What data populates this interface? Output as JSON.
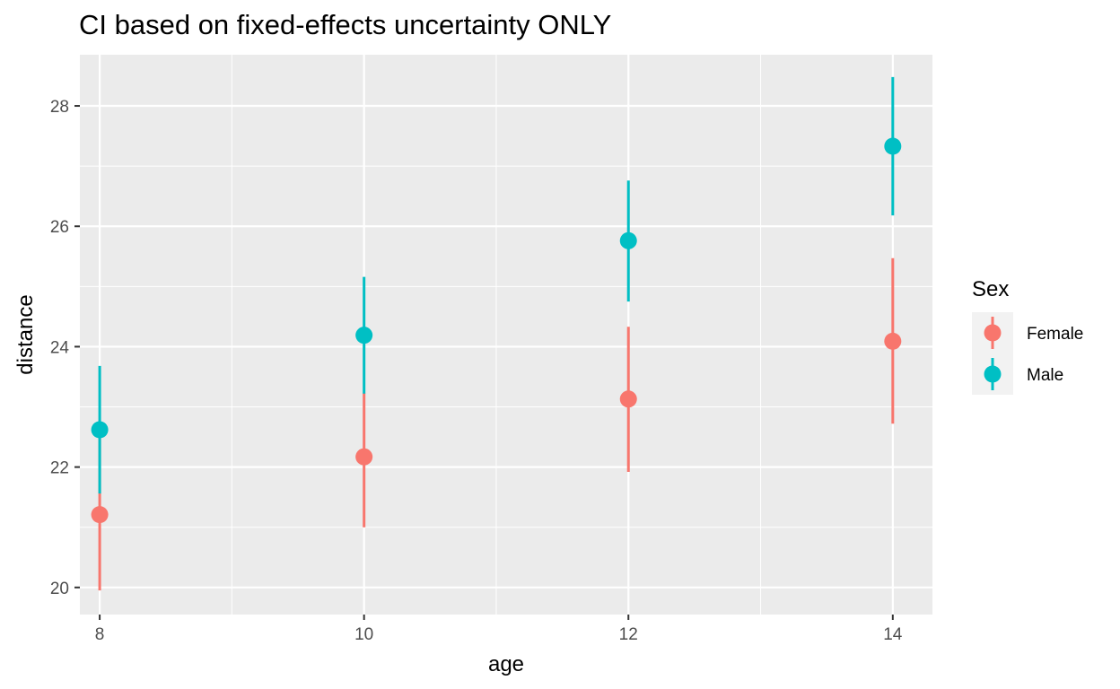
{
  "chart_data": {
    "type": "scatter",
    "title": "CI based on fixed-effects uncertainty ONLY",
    "xlabel": "age",
    "ylabel": "distance",
    "x": [
      8,
      10,
      12,
      14
    ],
    "xticks": [
      "8",
      "10",
      "12",
      "14"
    ],
    "yticks": [
      "20",
      "22",
      "24",
      "26",
      "28"
    ],
    "xlim": [
      7.85,
      14.3
    ],
    "ylim": [
      19.55,
      28.85
    ],
    "grid": true,
    "legend": {
      "title": "Sex",
      "placement": "right"
    },
    "series": [
      {
        "name": "Female",
        "color": "#F8766D",
        "values": [
          21.21,
          22.17,
          23.13,
          24.09
        ],
        "lower": [
          19.95,
          21.0,
          21.92,
          22.72
        ],
        "upper": [
          22.52,
          23.23,
          24.33,
          25.47
        ]
      },
      {
        "name": "Male",
        "color": "#00BFC4",
        "values": [
          22.62,
          24.19,
          25.76,
          27.33
        ],
        "lower": [
          21.56,
          23.22,
          24.75,
          26.18
        ],
        "upper": [
          23.68,
          25.16,
          26.76,
          28.48
        ]
      }
    ]
  }
}
